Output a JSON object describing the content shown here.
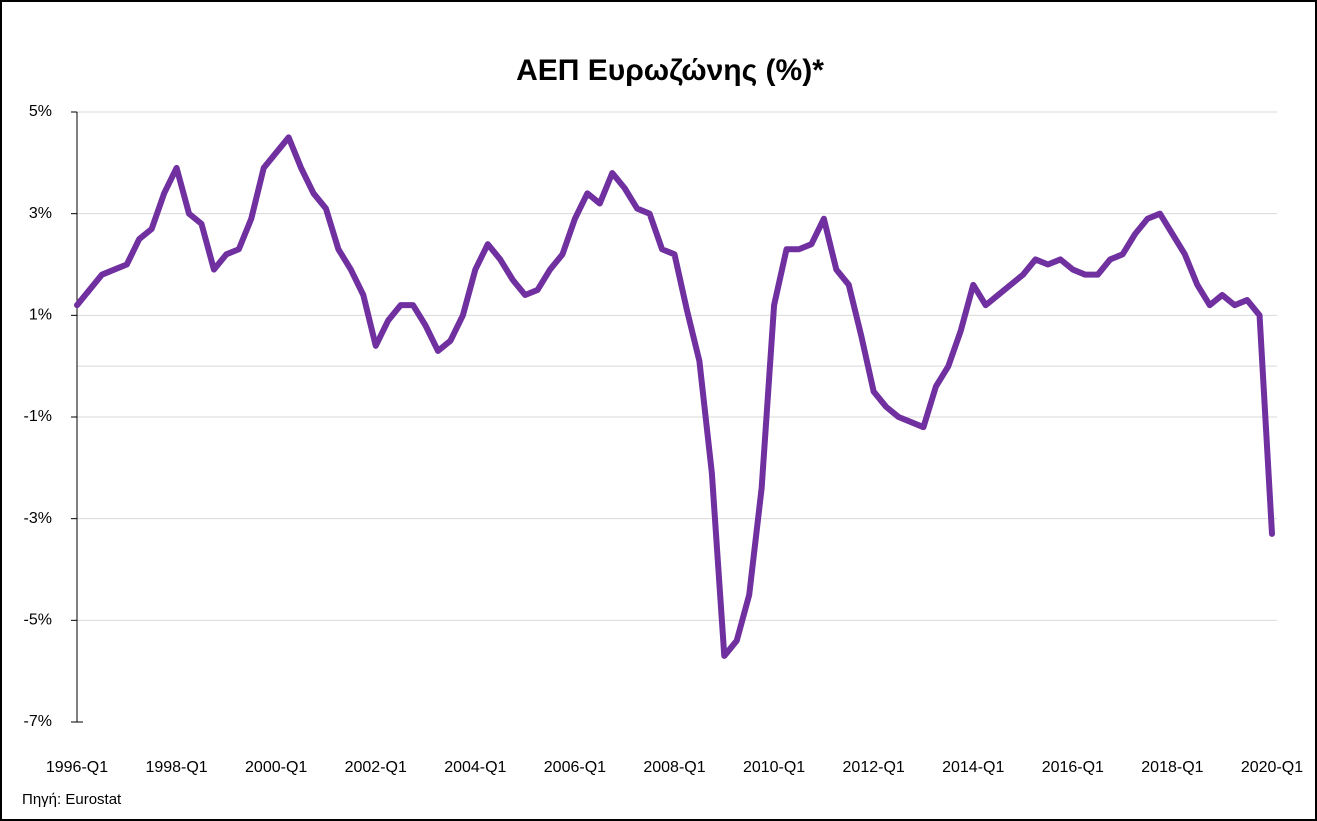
{
  "chart_data": {
    "type": "line",
    "title": "ΑΕΠ Ευρωζώνης (%)*",
    "source": "Πηγή: Eurostat",
    "categories": [
      "1996-Q1",
      null,
      null,
      null,
      null,
      null,
      null,
      null,
      "1998-Q1",
      null,
      null,
      null,
      null,
      null,
      null,
      null,
      "2000-Q1",
      null,
      null,
      null,
      null,
      null,
      null,
      null,
      "2002-Q1",
      null,
      null,
      null,
      null,
      null,
      null,
      null,
      "2004-Q1",
      null,
      null,
      null,
      null,
      null,
      null,
      null,
      "2006-Q1",
      null,
      null,
      null,
      null,
      null,
      null,
      null,
      "2008-Q1",
      null,
      null,
      null,
      null,
      null,
      null,
      null,
      "2010-Q1",
      null,
      null,
      null,
      null,
      null,
      null,
      null,
      "2012-Q1",
      null,
      null,
      null,
      null,
      null,
      null,
      null,
      "2014-Q1",
      null,
      null,
      null,
      null,
      null,
      null,
      null,
      "2016-Q1",
      null,
      null,
      null,
      null,
      null,
      null,
      null,
      "2018-Q1",
      null,
      null,
      null,
      null,
      null,
      null,
      null,
      "2020-Q1"
    ],
    "values": [
      1.2,
      1.5,
      1.8,
      1.9,
      2.0,
      2.5,
      2.7,
      3.4,
      3.9,
      3.0,
      2.8,
      1.9,
      2.2,
      2.3,
      2.9,
      3.9,
      4.2,
      4.5,
      3.9,
      3.4,
      3.1,
      2.3,
      1.9,
      1.4,
      0.4,
      0.9,
      1.2,
      1.2,
      0.8,
      0.3,
      0.5,
      1.0,
      1.9,
      2.4,
      2.1,
      1.7,
      1.4,
      1.5,
      1.9,
      2.2,
      2.9,
      3.4,
      3.2,
      3.8,
      3.5,
      3.1,
      3.0,
      2.3,
      2.2,
      1.1,
      0.1,
      -2.1,
      -5.7,
      -5.4,
      -4.5,
      -2.4,
      1.2,
      2.3,
      2.3,
      2.4,
      2.9,
      1.9,
      1.6,
      0.6,
      -0.5,
      -0.8,
      -1.0,
      -1.1,
      -1.2,
      -0.4,
      0.0,
      0.7,
      1.6,
      1.2,
      1.4,
      1.6,
      1.8,
      2.1,
      2.0,
      2.1,
      1.9,
      1.8,
      1.8,
      2.1,
      2.2,
      2.6,
      2.9,
      3.0,
      2.6,
      2.2,
      1.6,
      1.2,
      1.4,
      1.2,
      1.3,
      1.0,
      -3.3
    ],
    "color": "#7030a0",
    "ylim": [
      -7,
      5
    ],
    "yticks": [
      {
        "value": -7,
        "label": "-7%"
      },
      {
        "value": -5,
        "label": "-5%"
      },
      {
        "value": -3,
        "label": "-3%"
      },
      {
        "value": -1,
        "label": "-1%"
      },
      {
        "value": 1,
        "label": "1%"
      },
      {
        "value": 3,
        "label": "3%"
      },
      {
        "value": 5,
        "label": "5%"
      }
    ],
    "grid": true
  }
}
